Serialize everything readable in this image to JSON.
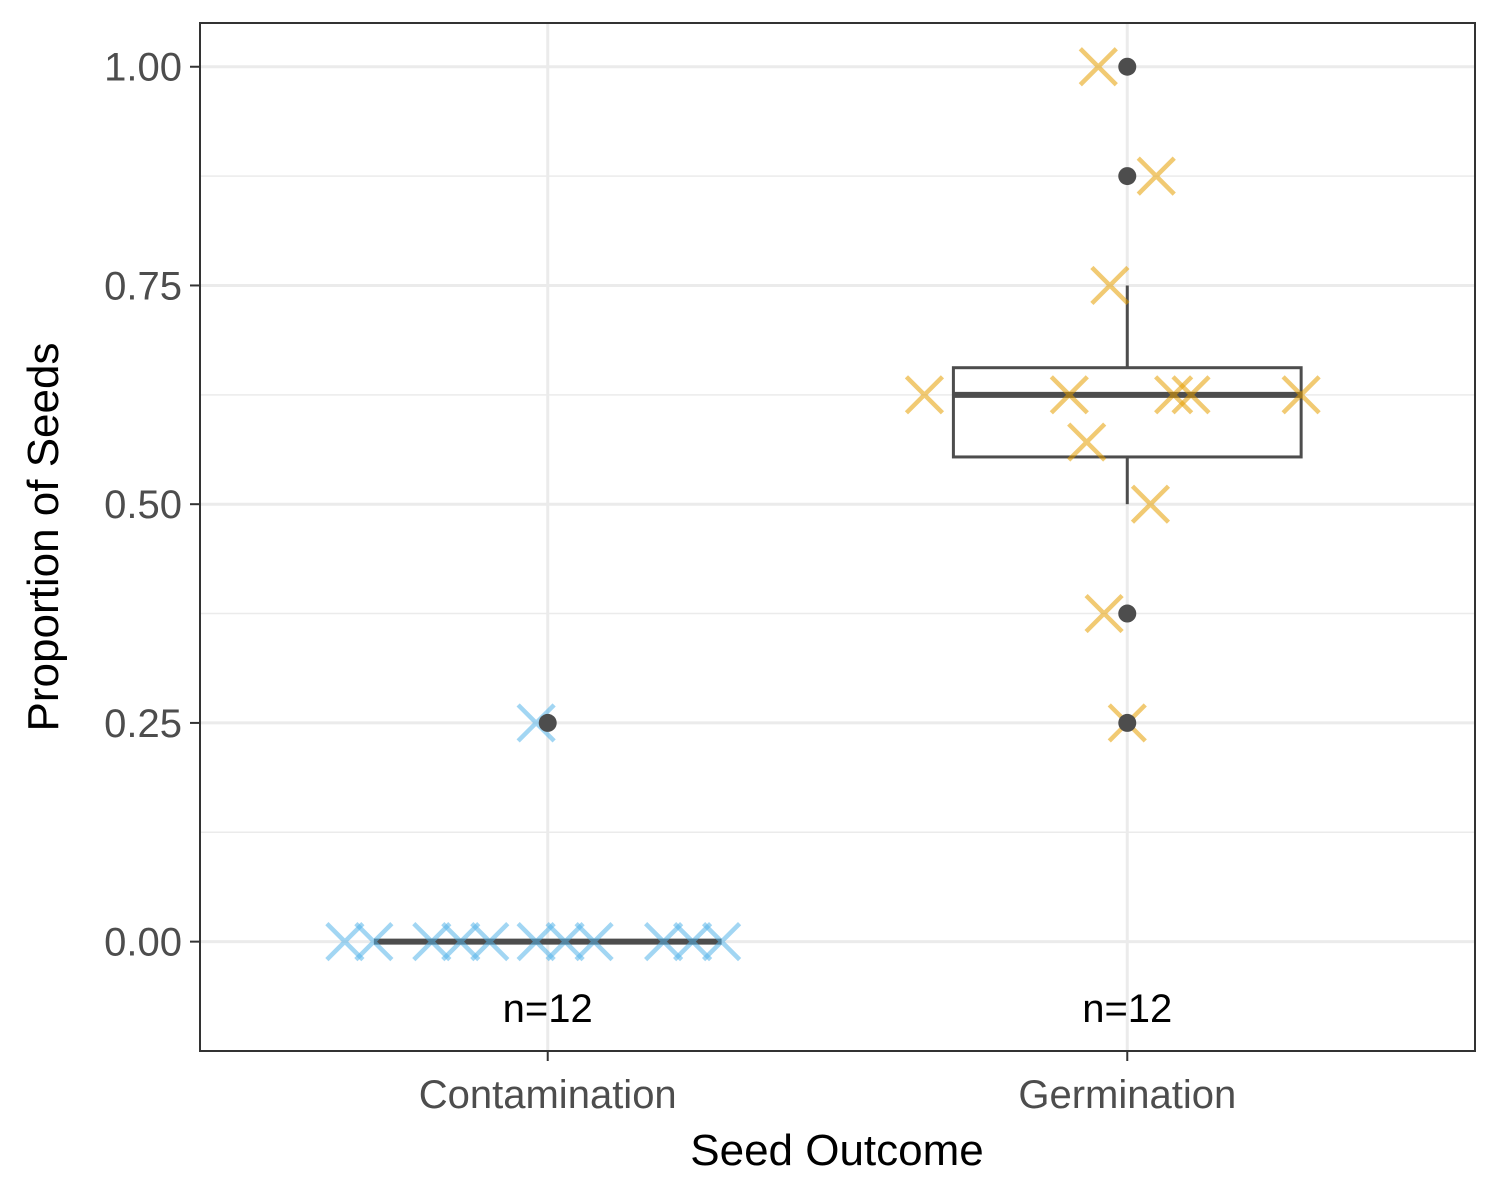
{
  "chart_data": {
    "type": "box",
    "xlabel": "Seed Outcome",
    "ylabel": "Proportion of Seeds",
    "ylim": [
      -0.125,
      1.05
    ],
    "y_ticks": [
      0,
      0.25,
      0.5,
      0.75,
      1
    ],
    "y_tick_labels": [
      "0.00",
      "0.25",
      "0.50",
      "0.75",
      "1.00"
    ],
    "grid": true,
    "categories": [
      "Contamination",
      "Germination"
    ],
    "groups": [
      {
        "name": "Contamination",
        "color": "#56B4E9",
        "box": {
          "q1": 0.0,
          "median": 0.0,
          "q3": 0.0,
          "whisker_low": 0.0,
          "whisker_high": 0.0
        },
        "outliers": [
          0.25
        ],
        "points": [
          0,
          0,
          0,
          0,
          0,
          0,
          0,
          0,
          0,
          0,
          0,
          0.25
        ],
        "jitter": [
          -0.35,
          -0.3,
          -0.2,
          -0.15,
          -0.1,
          -0.02,
          0.03,
          0.08,
          0.2,
          0.25,
          0.3,
          -0.02
        ],
        "n_label": "n=12"
      },
      {
        "name": "Germination",
        "color": "#E69F00",
        "box": {
          "q1": 0.554,
          "median": 0.625,
          "q3": 0.656,
          "whisker_low": 0.5,
          "whisker_high": 0.75
        },
        "outliers": [
          1.0,
          0.875,
          0.375,
          0.25
        ],
        "points": [
          1.0,
          0.875,
          0.75,
          0.625,
          0.625,
          0.625,
          0.625,
          0.625,
          0.571,
          0.5,
          0.375,
          0.25
        ],
        "jitter": [
          -0.05,
          0.05,
          -0.03,
          -0.35,
          -0.1,
          0.08,
          0.11,
          0.3,
          -0.07,
          0.04,
          -0.04,
          0.0
        ],
        "n_label": "n=12"
      }
    ]
  }
}
